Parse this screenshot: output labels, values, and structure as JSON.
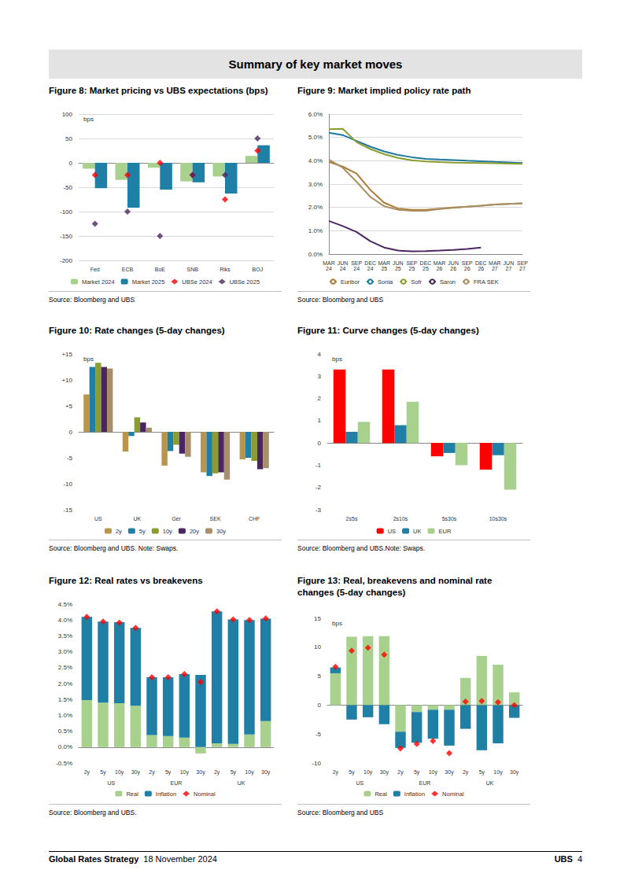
{
  "page": {
    "header": "Summary of key market moves",
    "footer": {
      "left": "Global Rates Strategy",
      "date": "18 November 2024",
      "brand": "UBS",
      "page": "4"
    }
  },
  "chart_data": [
    {
      "type": "bar",
      "title": "Figure 8: Market pricing vs UBS expectations (bps)",
      "source": "Source: Bloomberg and UBS",
      "ylabel": "bps",
      "categories": [
        "Fed",
        "ECB",
        "BoE",
        "SNB",
        "Riks",
        "BOJ"
      ],
      "series": [
        {
          "name": "Market 2024",
          "type": "bar",
          "color": "#a9d18e",
          "values": [
            -12,
            -35,
            -10,
            -38,
            -28,
            14
          ]
        },
        {
          "name": "Market 2025",
          "type": "bar",
          "color": "#1f7fa5",
          "values": [
            -52,
            -92,
            -55,
            -40,
            -63,
            36
          ]
        },
        {
          "name": "UBSe 2024",
          "type": "scatter",
          "marker": "diamond",
          "color": "#ff0000",
          "values": [
            -25,
            -25,
            0,
            -25,
            -75,
            25
          ]
        },
        {
          "name": "UBSe 2025",
          "type": "scatter",
          "marker": "diamond",
          "color": "#4a2560",
          "values": [
            -125,
            -100,
            -150,
            -25,
            -25,
            50
          ]
        }
      ],
      "ylim": [
        -200,
        100
      ],
      "yticks": [
        -200,
        -150,
        -100,
        -50,
        0,
        50,
        100
      ],
      "grid": true,
      "legend": "bottom"
    },
    {
      "type": "line",
      "title": "Figure 9: Market implied policy rate path",
      "source": "Source: Bloomberg and UBS",
      "categories": [
        "MAR 24",
        "JUN 24",
        "SEP 24",
        "DEC 24",
        "MAR 25",
        "JUN 25",
        "SEP 25",
        "DEC 25",
        "MAR 26",
        "JUN 26",
        "SEP 26",
        "DEC 26",
        "MAR 27",
        "JUN 27",
        "SEP 27"
      ],
      "series": [
        {
          "name": "Euribor",
          "color": "#b07c35",
          "values": [
            3.95,
            3.75,
            3.45,
            2.75,
            2.2,
            1.95,
            1.9,
            1.9,
            1.95,
            2.0,
            2.03,
            2.07,
            2.12,
            2.15,
            2.17
          ]
        },
        {
          "name": "Sonia",
          "color": "#1f78a0",
          "values": [
            5.2,
            5.1,
            4.85,
            4.6,
            4.4,
            4.25,
            4.15,
            4.08,
            4.05,
            4.03,
            4.0,
            3.98,
            3.95,
            3.93,
            3.9
          ]
        },
        {
          "name": "Sofr",
          "color": "#8b9d2e",
          "values": [
            5.35,
            5.37,
            4.8,
            4.5,
            4.28,
            4.12,
            4.02,
            3.97,
            3.94,
            3.92,
            3.91,
            3.9,
            3.89,
            3.88,
            3.87
          ]
        },
        {
          "name": "Saron",
          "color": "#4a2560",
          "values": [
            1.42,
            1.2,
            0.95,
            0.55,
            0.28,
            0.15,
            0.12,
            0.13,
            0.15,
            0.18,
            0.22,
            0.28,
            null,
            null,
            null
          ]
        },
        {
          "name": "FRA SEK",
          "color": "#a88f64",
          "values": [
            4.05,
            3.7,
            3.1,
            2.45,
            2.05,
            1.9,
            1.85,
            1.85,
            1.93,
            1.98,
            2.03,
            2.07,
            2.12,
            2.15,
            2.17
          ]
        }
      ],
      "ylim": [
        0,
        6
      ],
      "yticks": [
        {
          "value": 0,
          "label": "0.0%"
        },
        {
          "value": 1,
          "label": "1.0%"
        },
        {
          "value": 2,
          "label": "2.0%"
        },
        {
          "value": 3,
          "label": "3.0%"
        },
        {
          "value": 4,
          "label": "4.0%"
        },
        {
          "value": 5,
          "label": "5.0%"
        },
        {
          "value": 6,
          "label": "6.0%"
        }
      ],
      "grid": true,
      "legend": "bottom"
    },
    {
      "type": "bar",
      "title": "Figure 10: Rate changes (5-day changes)",
      "source": "Source: Bloomberg and UBS. Note: Swaps.",
      "ylabel": "bps",
      "categories": [
        "US",
        "UK",
        "Ger",
        "SEK",
        "CHF"
      ],
      "series": [
        {
          "name": "2y",
          "color": "#b8954a",
          "values": [
            7.2,
            -3.8,
            -6.5,
            -7.8,
            -5.3
          ]
        },
        {
          "name": "5y",
          "color": "#1f7fa5",
          "values": [
            12.5,
            -0.8,
            -3.7,
            -8.5,
            -5.0
          ]
        },
        {
          "name": "10y",
          "color": "#8b9d2e",
          "values": [
            13.3,
            2.8,
            -2.5,
            -8.0,
            -5.6
          ]
        },
        {
          "name": "20y",
          "color": "#4a2560",
          "values": [
            12.5,
            1.8,
            -4.2,
            -7.8,
            -7.2
          ]
        },
        {
          "name": "30y",
          "color": "#a88f6a",
          "values": [
            12.2,
            0.8,
            -4.8,
            -9.2,
            -7.0
          ]
        }
      ],
      "ylim": [
        -15,
        15
      ],
      "yticks": [
        -15,
        -10,
        -5,
        0,
        {
          "value": 5,
          "label": "+5"
        },
        {
          "value": 10,
          "label": "+10"
        },
        {
          "value": 15,
          "label": "+15"
        }
      ],
      "grid": false,
      "legend": "bottom"
    },
    {
      "type": "bar",
      "title": "Figure 11: Curve changes (5-day changes)",
      "source": "Source: Bloomberg and UBS.Note: Swaps.",
      "ylabel": "bps",
      "categories": [
        "2s5s",
        "2s10s",
        "5s30s",
        "10s30s"
      ],
      "series": [
        {
          "name": "US",
          "color": "#ff0000",
          "values": [
            3.3,
            3.3,
            -0.6,
            -1.2
          ]
        },
        {
          "name": "UK",
          "color": "#1f7fa5",
          "values": [
            0.5,
            0.8,
            -0.45,
            -0.55
          ]
        },
        {
          "name": "EUR",
          "color": "#a9d18e",
          "values": [
            0.95,
            1.85,
            -1.0,
            -2.1
          ]
        }
      ],
      "ylim": [
        -3,
        4
      ],
      "yticks": [
        -3,
        -2,
        -1,
        0,
        1,
        2,
        3,
        4
      ],
      "grid": false,
      "legend": "bottom"
    },
    {
      "type": "bar",
      "title": "Figure 12: Real rates vs breakevens",
      "source": "Source: Bloomberg and UBS.",
      "categories": [
        "2y",
        "5y",
        "10y",
        "30y",
        "2y",
        "5y",
        "10y",
        "30y",
        "2y",
        "5y",
        "10y",
        "30y"
      ],
      "groups": [
        "US",
        "EUR",
        "UK"
      ],
      "series": [
        {
          "name": "Real",
          "type": "bar",
          "color": "#a9d18e",
          "values": [
            1.48,
            1.4,
            1.38,
            1.3,
            0.38,
            0.35,
            0.3,
            -0.2,
            0.12,
            0.1,
            0.4,
            0.82
          ]
        },
        {
          "name": "Inflation",
          "type": "bar",
          "color": "#1f7fa5",
          "values": [
            2.62,
            2.55,
            2.55,
            2.45,
            1.82,
            1.85,
            2.0,
            2.27,
            4.15,
            3.92,
            3.6,
            3.22
          ]
        },
        {
          "name": "Nominal",
          "type": "scatter",
          "marker": "diamond",
          "color": "#ff0000",
          "values": [
            4.1,
            3.95,
            3.92,
            3.75,
            2.2,
            2.2,
            2.3,
            2.05,
            4.27,
            4.02,
            4.0,
            4.05
          ]
        }
      ],
      "ylim": [
        -0.5,
        4.5
      ],
      "yticks": [
        {
          "value": -0.5,
          "label": "-0.5%"
        },
        {
          "value": 0,
          "label": "0.0%"
        },
        {
          "value": 0.5,
          "label": "0.5%"
        },
        {
          "value": 1,
          "label": "1.0%"
        },
        {
          "value": 1.5,
          "label": "1.5%"
        },
        {
          "value": 2,
          "label": "2.0%"
        },
        {
          "value": 2.5,
          "label": "2.5%"
        },
        {
          "value": 3,
          "label": "3.0%"
        },
        {
          "value": 3.5,
          "label": "3.5%"
        },
        {
          "value": 4,
          "label": "4.0%"
        },
        {
          "value": 4.5,
          "label": "4.5%"
        }
      ],
      "stacked": true,
      "grid": false,
      "legend": "bottom"
    },
    {
      "type": "bar",
      "title": "Figure 13: Real, breakevens and nominal rate changes (5-day changes)",
      "source": "Source: Bloomberg and UBS",
      "ylabel": "bps",
      "categories": [
        "2y",
        "5y",
        "10y",
        "30y",
        "2y",
        "5y",
        "10y",
        "30y",
        "2y",
        "5y",
        "10y",
        "30y"
      ],
      "groups": [
        "US",
        "EUR",
        "UK"
      ],
      "series": [
        {
          "name": "Real",
          "type": "bar",
          "color": "#a9d18e",
          "values": [
            5.5,
            11.8,
            11.9,
            11.9,
            -4.6,
            -1.2,
            -0.8,
            -0.8,
            4.7,
            8.5,
            7.0,
            2.2
          ]
        },
        {
          "name": "Inflation",
          "type": "bar",
          "color": "#1f7fa5",
          "values": [
            1.0,
            -2.5,
            -2.1,
            -3.3,
            -2.8,
            -5.3,
            -5.0,
            -6.2,
            -4.1,
            -7.8,
            -6.6,
            -2.2
          ]
        },
        {
          "name": "Nominal",
          "type": "scatter",
          "marker": "diamond",
          "color": "#ff0000",
          "values": [
            6.6,
            9.4,
            9.9,
            8.7,
            -7.5,
            -6.7,
            -6.2,
            -8.3,
            0.6,
            0.7,
            0.5,
            0.0
          ]
        }
      ],
      "ylim": [
        -10,
        15
      ],
      "yticks": [
        -10,
        -5,
        0,
        5,
        10,
        15
      ],
      "stacked": true,
      "grid": false,
      "legend": "bottom"
    }
  ]
}
